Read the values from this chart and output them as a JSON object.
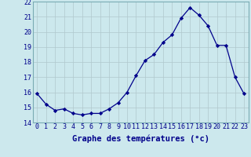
{
  "x": [
    0,
    1,
    2,
    3,
    4,
    5,
    6,
    7,
    8,
    9,
    10,
    11,
    12,
    13,
    14,
    15,
    16,
    17,
    18,
    19,
    20,
    21,
    22,
    23
  ],
  "y": [
    15.9,
    15.2,
    14.8,
    14.9,
    14.6,
    14.5,
    14.6,
    14.6,
    14.9,
    15.3,
    16.0,
    17.1,
    18.1,
    18.5,
    19.3,
    19.8,
    20.9,
    21.6,
    21.1,
    20.4,
    19.1,
    19.1,
    17.0,
    15.9
  ],
  "line_color": "#00008b",
  "marker": "D",
  "markersize": 2.2,
  "linewidth": 0.9,
  "bg_color": "#cce8ed",
  "grid_color": "#b0c8cc",
  "xlabel": "Graphe des températures (°c)",
  "xlabel_color": "#00008b",
  "xlabel_fontsize": 7.5,
  "tick_color": "#00008b",
  "tick_fontsize": 6.0,
  "ylim": [
    14,
    22
  ],
  "xlim": [
    -0.5,
    23.5
  ],
  "yticks": [
    14,
    15,
    16,
    17,
    18,
    19,
    20,
    21,
    22
  ],
  "xticks": [
    0,
    1,
    2,
    3,
    4,
    5,
    6,
    7,
    8,
    9,
    10,
    11,
    12,
    13,
    14,
    15,
    16,
    17,
    18,
    19,
    20,
    21,
    22,
    23
  ]
}
